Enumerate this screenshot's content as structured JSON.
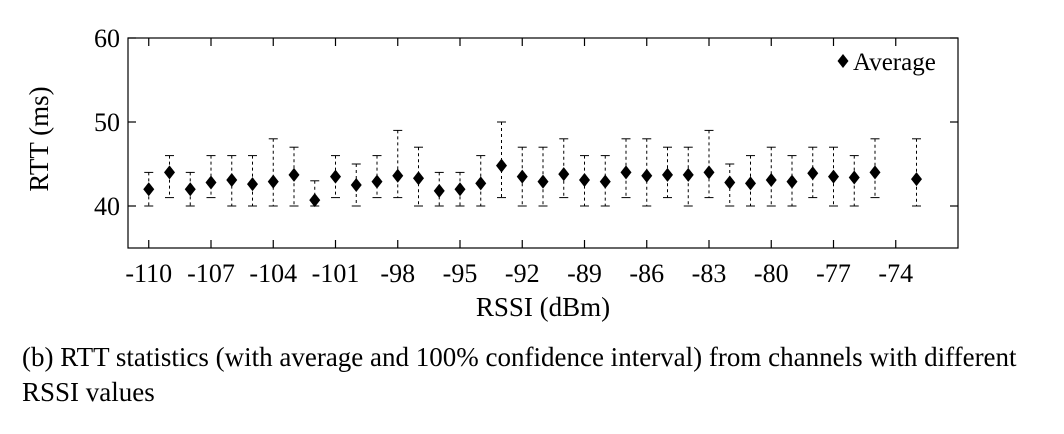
{
  "chart_data": {
    "type": "scatter",
    "xlabel": "RSSI (dBm)",
    "ylabel": "RTT (ms)",
    "xlim": [
      -111,
      -71
    ],
    "ylim": [
      35,
      60
    ],
    "xticks": [
      -110,
      -107,
      -104,
      -101,
      -98,
      -95,
      -92,
      -89,
      -86,
      -83,
      -80,
      -77,
      -74
    ],
    "yticks": [
      40,
      50,
      60
    ],
    "legend": {
      "label": "Average",
      "marker": "diamond",
      "placement": "top-right"
    },
    "marker_color": "#000000",
    "grid": false,
    "points": [
      {
        "x": -110,
        "avg": 42.0,
        "min": 40,
        "max": 44
      },
      {
        "x": -109,
        "avg": 44.0,
        "min": 41,
        "max": 46
      },
      {
        "x": -108,
        "avg": 42.0,
        "min": 40,
        "max": 44
      },
      {
        "x": -107,
        "avg": 42.8,
        "min": 41,
        "max": 46
      },
      {
        "x": -106,
        "avg": 43.1,
        "min": 40,
        "max": 46
      },
      {
        "x": -105,
        "avg": 42.6,
        "min": 40,
        "max": 46
      },
      {
        "x": -104,
        "avg": 42.9,
        "min": 40,
        "max": 48
      },
      {
        "x": -103,
        "avg": 43.7,
        "min": 40,
        "max": 47
      },
      {
        "x": -102,
        "avg": 40.7,
        "min": 40,
        "max": 43
      },
      {
        "x": -101,
        "avg": 43.5,
        "min": 41,
        "max": 46
      },
      {
        "x": -100,
        "avg": 42.5,
        "min": 40,
        "max": 45
      },
      {
        "x": -99,
        "avg": 42.9,
        "min": 41,
        "max": 46
      },
      {
        "x": -98,
        "avg": 43.6,
        "min": 41,
        "max": 49
      },
      {
        "x": -97,
        "avg": 43.3,
        "min": 40,
        "max": 47
      },
      {
        "x": -96,
        "avg": 41.8,
        "min": 40,
        "max": 44
      },
      {
        "x": -95,
        "avg": 42.0,
        "min": 40,
        "max": 44
      },
      {
        "x": -94,
        "avg": 42.7,
        "min": 40,
        "max": 46
      },
      {
        "x": -93,
        "avg": 44.8,
        "min": 41,
        "max": 50
      },
      {
        "x": -92,
        "avg": 43.5,
        "min": 40,
        "max": 47
      },
      {
        "x": -91,
        "avg": 42.9,
        "min": 40,
        "max": 47
      },
      {
        "x": -90,
        "avg": 43.8,
        "min": 41,
        "max": 48
      },
      {
        "x": -89,
        "avg": 43.1,
        "min": 40,
        "max": 46
      },
      {
        "x": -88,
        "avg": 42.9,
        "min": 40,
        "max": 46
      },
      {
        "x": -87,
        "avg": 44.0,
        "min": 41,
        "max": 48
      },
      {
        "x": -86,
        "avg": 43.6,
        "min": 40,
        "max": 48
      },
      {
        "x": -85,
        "avg": 43.7,
        "min": 41,
        "max": 47
      },
      {
        "x": -84,
        "avg": 43.7,
        "min": 40,
        "max": 47
      },
      {
        "x": -83,
        "avg": 44.0,
        "min": 41,
        "max": 49
      },
      {
        "x": -82,
        "avg": 42.8,
        "min": 40,
        "max": 45
      },
      {
        "x": -81,
        "avg": 42.7,
        "min": 40,
        "max": 46
      },
      {
        "x": -80,
        "avg": 43.1,
        "min": 40,
        "max": 47
      },
      {
        "x": -79,
        "avg": 42.9,
        "min": 40,
        "max": 46
      },
      {
        "x": -78,
        "avg": 43.9,
        "min": 41,
        "max": 47
      },
      {
        "x": -77,
        "avg": 43.5,
        "min": 40,
        "max": 47
      },
      {
        "x": -76,
        "avg": 43.4,
        "min": 40,
        "max": 46
      },
      {
        "x": -75,
        "avg": 44.0,
        "min": 41,
        "max": 48
      },
      {
        "x": -73,
        "avg": 43.2,
        "min": 40,
        "max": 48
      }
    ]
  },
  "caption": {
    "text": "(b)  RTT statistics (with average and 100% confidence interval) from channels with different RSSI values"
  }
}
